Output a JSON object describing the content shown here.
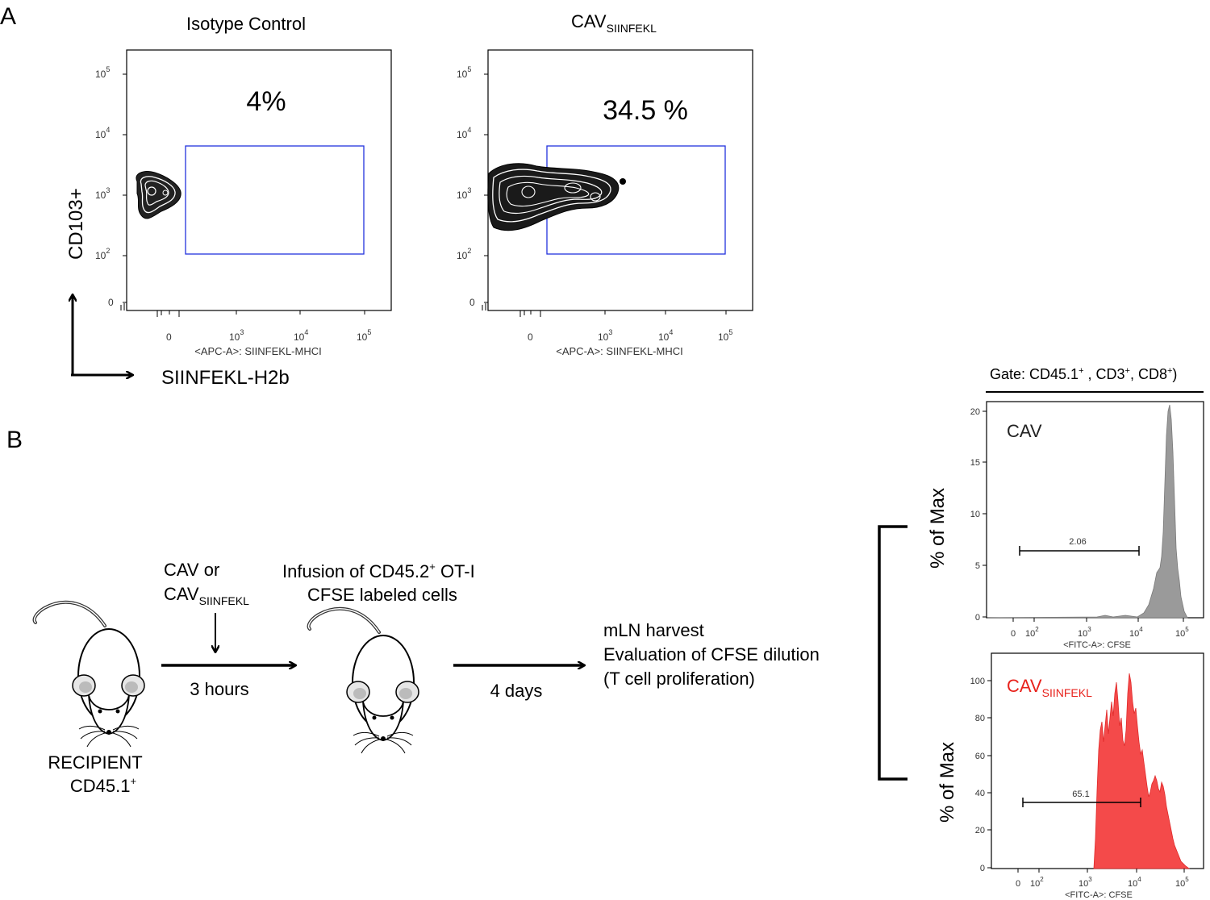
{
  "panel_a": {
    "label": "A",
    "y_axis_label": "CD103+",
    "x_axis_label": "SIINFEKL-H2b",
    "plots": [
      {
        "title": "Isotype Control",
        "title_sub": "",
        "percent": "4%",
        "x_label": "<APC-A>: SIINFEKL-MHCI"
      },
      {
        "title": "CAV",
        "title_sub": "SIINFEKL",
        "percent": "34.5 %",
        "x_label": "<APC-A>: SIINFEKL-MHCI"
      }
    ],
    "y_ticks": [
      {
        "base": "10",
        "exp": "5"
      },
      {
        "base": "10",
        "exp": "4"
      },
      {
        "base": "10",
        "exp": "3"
      },
      {
        "base": "10",
        "exp": "2"
      },
      {
        "base": "0",
        "exp": ""
      }
    ],
    "x_ticks": [
      {
        "base": "0",
        "exp": ""
      },
      {
        "base": "10",
        "exp": "3"
      },
      {
        "base": "10",
        "exp": "4"
      },
      {
        "base": "10",
        "exp": "5"
      }
    ]
  },
  "panel_b": {
    "label": "B",
    "gate": {
      "text1": "Gate: CD45.1",
      "sup1": "+",
      "text2": " , CD3",
      "sup2": "+",
      "text3": ", CD8",
      "sup3": "+",
      "text4": ")"
    },
    "recipient": {
      "line1": "RECIPIENT",
      "line2": "CD45.1",
      "line2_sup": "+"
    },
    "treatment": {
      "line1": "CAV or",
      "line2": "CAV",
      "line2_sub": "SIINFEKL"
    },
    "step1_label": "3 hours",
    "infusion": {
      "line1_a": "Infusion of CD45.2",
      "line1_sup": "+",
      "line1_b": " OT-I",
      "line2": "CFSE labeled cells"
    },
    "step2_label": "4 days",
    "harvest_lines": [
      "mLN harvest",
      "Evaluation of CFSE dilution",
      "(T cell proliferation)"
    ]
  },
  "chart_data": [
    {
      "type": "heatmap",
      "title": "Isotype Control",
      "xlabel": "<APC-A>: SIINFEKL-MHCI",
      "ylabel": "CD103+",
      "gate_label": "4%",
      "gate_value_percent": 4
    },
    {
      "type": "heatmap",
      "title": "CAV SIINFEKL",
      "xlabel": "<APC-A>: SIINFEKL-MHCI",
      "ylabel": "CD103+",
      "gate_label": "34.5 %",
      "gate_value_percent": 34.5
    },
    {
      "type": "area",
      "title": "CAV",
      "xlabel": "<FITC-A>: CFSE",
      "ylabel": "% of Max",
      "y_ticks": [
        "0",
        "5",
        "10",
        "15",
        "20"
      ],
      "ylim": [
        0,
        21
      ],
      "gate_value": "2.06",
      "color": "#9a9a9a"
    },
    {
      "type": "area",
      "title": "CAV SIINFEKL",
      "xlabel": "<FITC-A>: CFSE",
      "ylabel": "% of Max",
      "y_ticks": [
        "0",
        "20",
        "40",
        "60",
        "80",
        "100"
      ],
      "ylim": [
        0,
        110
      ],
      "gate_value": "65.1",
      "color": "#f44a4a"
    }
  ],
  "histograms": [
    {
      "title": "CAV",
      "title_sub": "",
      "title_color": "#222222",
      "ylabel": "% of Max",
      "xlabel": "<FITC-A>: CFSE",
      "gate_value": "2.06",
      "y_ticks": [
        "20",
        "15",
        "10",
        "5",
        "0"
      ],
      "x_ticks": [
        {
          "base": "0",
          "exp": ""
        },
        {
          "base": "10",
          "exp": "2"
        },
        {
          "base": "10",
          "exp": "3"
        },
        {
          "base": "10",
          "exp": "4"
        },
        {
          "base": "10",
          "exp": "5"
        }
      ]
    },
    {
      "title": "CAV",
      "title_sub": "SIINFEKL",
      "title_color": "#e8221c",
      "ylabel": "% of Max",
      "xlabel": "<FITC-A>: CFSE",
      "gate_value": "65.1",
      "y_ticks": [
        "100",
        "80",
        "60",
        "40",
        "20",
        "0"
      ],
      "x_ticks": [
        {
          "base": "0",
          "exp": ""
        },
        {
          "base": "10",
          "exp": "2"
        },
        {
          "base": "10",
          "exp": "3"
        },
        {
          "base": "10",
          "exp": "4"
        },
        {
          "base": "10",
          "exp": "5"
        }
      ]
    }
  ]
}
